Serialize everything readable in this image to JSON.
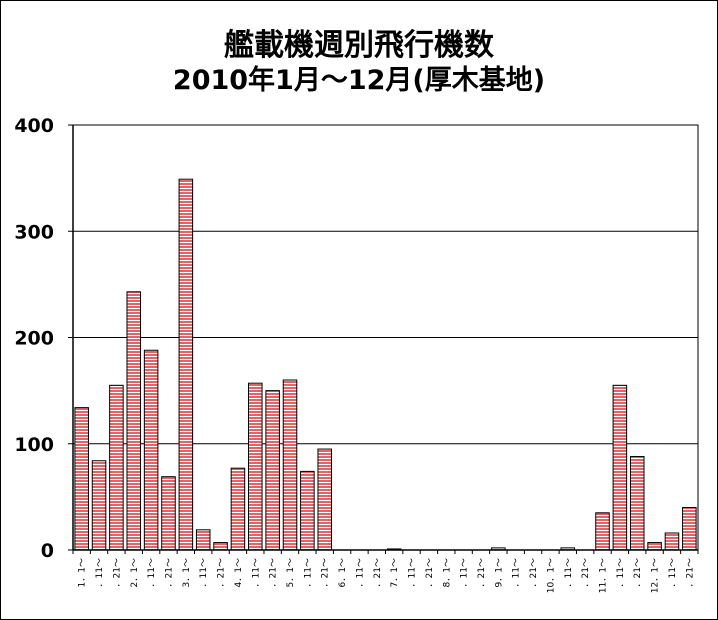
{
  "chart_data": {
    "type": "bar",
    "title": "艦載機週別飛行機数",
    "subtitle": "2010年1月～12月(厚木基地)",
    "categories": [
      "1．1～",
      "．11～",
      "．21～",
      "2．1～",
      "．11～",
      "．21～",
      "3．1～",
      "．11～",
      "．21～",
      "4．1～",
      "．11～",
      "．21～",
      "5．1～",
      "．11～",
      "．21～",
      "6．1～",
      "．11～",
      "．21～",
      "7．1～",
      "．11～",
      "．21～",
      "8．1～",
      "．11～",
      "．21～",
      "9．1～",
      "．11～",
      "．21～",
      "10．1～",
      "．11～",
      "．21～",
      "11．1～",
      "．11～",
      "．21～",
      "12．1～",
      "．11～",
      "．21～"
    ],
    "values": [
      134,
      84,
      155,
      243,
      188,
      69,
      349,
      19,
      7,
      77,
      157,
      150,
      160,
      74,
      95,
      0,
      0,
      0,
      1,
      0,
      0,
      0,
      0,
      0,
      2,
      0,
      0,
      0,
      2,
      0,
      35,
      155,
      88,
      7,
      16,
      40
    ],
    "ylim": [
      0,
      400
    ],
    "yticks": [
      0,
      100,
      200,
      300,
      400
    ],
    "grid": true,
    "xlabel": "",
    "ylabel": "",
    "colors": {
      "bar_fill": "#e06666",
      "bar_stripe": "#ffffff",
      "bar_edge": "#000000",
      "grid": "#000000"
    }
  }
}
